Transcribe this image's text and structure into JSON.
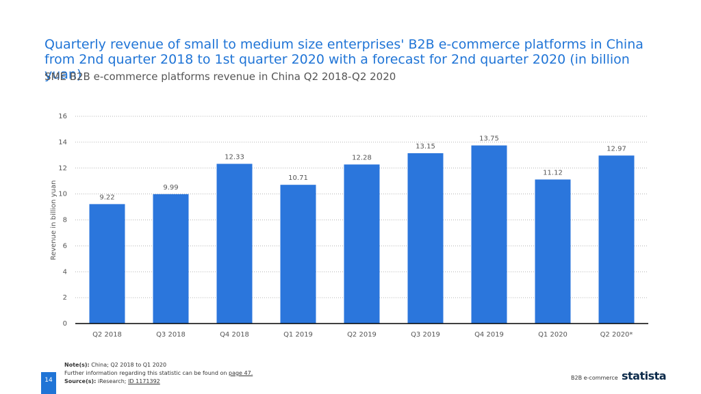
{
  "chart_data": {
    "type": "bar",
    "title": "Quarterly revenue of small to medium size enterprises' B2B e-commerce platforms in China from 2nd quarter 2018 to 1st quarter 2020 with a forecast for 2nd quarter 2020 (in billion yuan)",
    "subtitle": "SME B2B e-commerce platforms revenue in China Q2 2018-Q2 2020",
    "y_axis_label": "Revenue in billion yuan",
    "categories": [
      "Q2 2018",
      "Q3 2018",
      "Q4 2018",
      "Q1 2019",
      "Q2 2019",
      "Q3 2019",
      "Q4 2019",
      "Q1 2020",
      "Q2 2020*"
    ],
    "values": [
      9.22,
      9.99,
      12.33,
      10.71,
      12.28,
      13.15,
      13.75,
      11.12,
      12.97
    ],
    "color": "#2b76dc",
    "ylim": [
      0,
      16
    ],
    "yticks": [
      0,
      2,
      4,
      6,
      8,
      10,
      12,
      14,
      16
    ],
    "grid": true
  },
  "footer": {
    "note_label": "Note(s):",
    "note": "China; Q2 2018 to Q1 2020",
    "further_info": "Further information regarding this statistic can be found on",
    "page_link": "page 47.",
    "source_label": "Source(s):",
    "source": "iResearch;",
    "id": "ID 1171392",
    "page_number": "14",
    "category": "B2B e-commerce",
    "logo": "statista"
  }
}
